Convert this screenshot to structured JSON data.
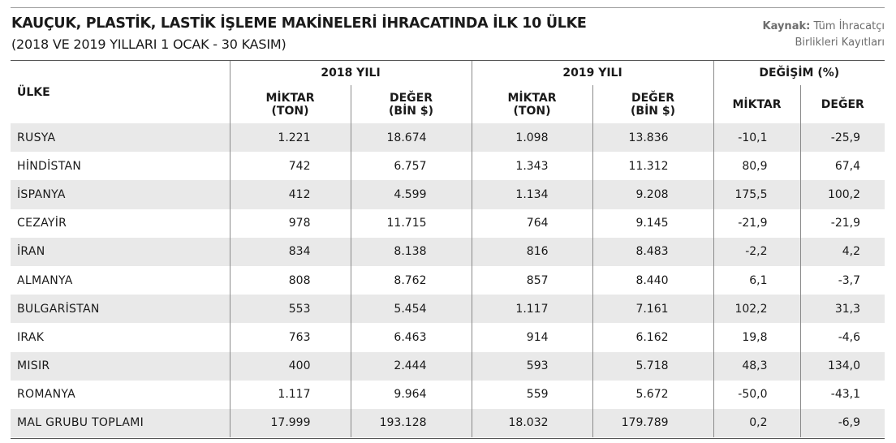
{
  "title": "KAUÇUK, PLASTİK, LASTİK İŞLEME MAKİNELERİ İHRACATINDA İLK 10 ÜLKE",
  "subtitle": "(2018 VE 2019 YILLARI 1 OCAK - 30 KASIM)",
  "source": {
    "label": "Kaynak:",
    "line1": "Tüm İhracatçı",
    "line2": "Birlikleri Kayıtları"
  },
  "table": {
    "country_header": "ÜLKE",
    "groups": [
      "2018 YILI",
      "2019 YILI",
      "DEĞİŞİM (%)"
    ],
    "subheaders": [
      {
        "line1": "MİKTAR",
        "line2": "(TON)"
      },
      {
        "line1": "DEĞER",
        "line2": "(BİN $)"
      },
      {
        "line1": "MİKTAR",
        "line2": "(TON)"
      },
      {
        "line1": "DEĞER",
        "line2": "(BİN $)"
      },
      {
        "line1": "MİKTAR",
        "line2": ""
      },
      {
        "line1": "DEĞER",
        "line2": ""
      }
    ],
    "rows": [
      {
        "country": "RUSYA",
        "m2018": "1.221",
        "d2018": "18.674",
        "m2019": "1.098",
        "d2019": "13.836",
        "dm": "-10,1",
        "dd": "-25,9"
      },
      {
        "country": "HİNDİSTAN",
        "m2018": "742",
        "d2018": "6.757",
        "m2019": "1.343",
        "d2019": "11.312",
        "dm": "80,9",
        "dd": "67,4"
      },
      {
        "country": "İSPANYA",
        "m2018": "412",
        "d2018": "4.599",
        "m2019": "1.134",
        "d2019": "9.208",
        "dm": "175,5",
        "dd": "100,2"
      },
      {
        "country": "CEZAYİR",
        "m2018": "978",
        "d2018": "11.715",
        "m2019": "764",
        "d2019": "9.145",
        "dm": "-21,9",
        "dd": "-21,9"
      },
      {
        "country": "İRAN",
        "m2018": "834",
        "d2018": "8.138",
        "m2019": "816",
        "d2019": "8.483",
        "dm": "-2,2",
        "dd": "4,2"
      },
      {
        "country": "ALMANYA",
        "m2018": "808",
        "d2018": "8.762",
        "m2019": "857",
        "d2019": "8.440",
        "dm": "6,1",
        "dd": "-3,7"
      },
      {
        "country": "BULGARİSTAN",
        "m2018": "553",
        "d2018": "5.454",
        "m2019": "1.117",
        "d2019": "7.161",
        "dm": "102,2",
        "dd": "31,3"
      },
      {
        "country": "IRAK",
        "m2018": "763",
        "d2018": "6.463",
        "m2019": "914",
        "d2019": "6.162",
        "dm": "19,8",
        "dd": "-4,6"
      },
      {
        "country": "MISIR",
        "m2018": "400",
        "d2018": "2.444",
        "m2019": "593",
        "d2019": "5.718",
        "dm": "48,3",
        "dd": "134,0"
      },
      {
        "country": "ROMANYA",
        "m2018": "1.117",
        "d2018": "9.964",
        "m2019": "559",
        "d2019": "5.672",
        "dm": "-50,0",
        "dd": "-43,1"
      },
      {
        "country": "MAL GRUBU TOPLAMI",
        "m2018": "17.999",
        "d2018": "193.128",
        "m2019": "18.032",
        "d2019": "179.789",
        "dm": "0,2",
        "dd": "-6,9"
      }
    ]
  }
}
